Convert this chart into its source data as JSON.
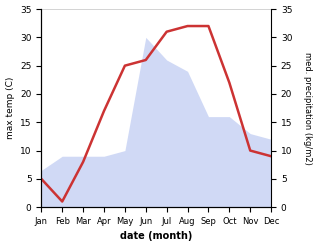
{
  "months": [
    "Jan",
    "Feb",
    "Mar",
    "Apr",
    "May",
    "Jun",
    "Jul",
    "Aug",
    "Sep",
    "Oct",
    "Nov",
    "Dec"
  ],
  "temperature": [
    5,
    1,
    8,
    17,
    25,
    26,
    31,
    32,
    32,
    22,
    10,
    9
  ],
  "precipitation": [
    6.5,
    9,
    9,
    9,
    10,
    30,
    26,
    24,
    16,
    16,
    13,
    12
  ],
  "temp_color": "#cc3333",
  "precip_color": "#aabbee",
  "precip_fill_alpha": 0.55,
  "xlabel": "date (month)",
  "ylabel_left": "max temp (C)",
  "ylabel_right": "med. precipitation (kg/m2)",
  "ylim": [
    0,
    35
  ],
  "yticks": [
    0,
    5,
    10,
    15,
    20,
    25,
    30,
    35
  ],
  "background_color": "#ffffff",
  "line_width": 1.8
}
